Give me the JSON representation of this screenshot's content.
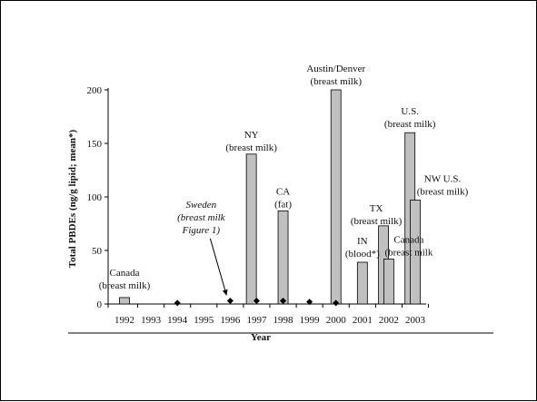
{
  "chart_data": {
    "type": "bar",
    "xlabel": "Year",
    "ylabel": "Total PBDEs (ng/g lipid; mean*)",
    "ylim": [
      0,
      200
    ],
    "yticks": [
      0,
      50,
      100,
      150,
      200
    ],
    "categories": [
      "1992",
      "1993",
      "1994",
      "1995",
      "1996",
      "1997",
      "1998",
      "1999",
      "2000",
      "2001",
      "2002",
      "2003"
    ],
    "bars": [
      {
        "year": 1992.0,
        "value": 6
      },
      {
        "year": 1996.8,
        "value": 140
      },
      {
        "year": 1998.0,
        "value": 87
      },
      {
        "year": 2000.0,
        "value": 200
      },
      {
        "year": 2001.0,
        "value": 39
      },
      {
        "year": 2001.8,
        "value": 73
      },
      {
        "year": 2002.0,
        "value": 42
      },
      {
        "year": 2002.8,
        "value": 160
      },
      {
        "year": 2003.0,
        "value": 97
      }
    ],
    "points": [
      {
        "year": 1994.0,
        "value": 1
      },
      {
        "year": 1996.0,
        "value": 3
      },
      {
        "year": 1997.0,
        "value": 3
      },
      {
        "year": 1998.0,
        "value": 3
      },
      {
        "year": 1999.0,
        "value": 2
      },
      {
        "year": 2000.0,
        "value": 1
      }
    ],
    "annotations": [
      {
        "id": "canada-1992",
        "lines": [
          "Canada",
          "(breast milk)"
        ],
        "year": 1992.0,
        "value": 6,
        "dy": [
          -24,
          -10
        ],
        "dx": 0,
        "style": "normal",
        "anchor": "middle"
      },
      {
        "id": "sweden",
        "lines": [
          "Sweden",
          "(breast milk",
          "Figure 1)"
        ],
        "year": 1994.9,
        "value": 90,
        "dy": [
          0,
          14,
          28
        ],
        "dx": 0,
        "style": "italic",
        "anchor": "middle"
      },
      {
        "id": "ny",
        "lines": [
          "NY",
          "(breast milk)"
        ],
        "year": 1996.8,
        "value": 140,
        "dy": [
          -18,
          -4
        ],
        "dx": 0,
        "style": "normal",
        "anchor": "middle"
      },
      {
        "id": "ca",
        "lines": [
          "CA",
          "(fat)"
        ],
        "year": 1998.0,
        "value": 87,
        "dy": [
          -18,
          -4
        ],
        "dx": 0,
        "style": "normal",
        "anchor": "middle"
      },
      {
        "id": "austin-denver",
        "lines": [
          "Austin/Denver",
          "(breast milk)"
        ],
        "year": 2000.0,
        "value": 200,
        "dy": [
          -20,
          -6
        ],
        "dx": 0,
        "style": "normal",
        "anchor": "middle"
      },
      {
        "id": "in",
        "lines": [
          "IN",
          "(blood*)"
        ],
        "year": 2001.0,
        "value": 39,
        "dy": [
          -20,
          -6
        ],
        "dx": 0,
        "style": "normal",
        "anchor": "middle"
      },
      {
        "id": "tx",
        "lines": [
          "TX",
          "(breast milk)"
        ],
        "year": 2001.8,
        "value": 73,
        "dy": [
          -16,
          -2
        ],
        "dx": -8,
        "style": "normal",
        "anchor": "middle"
      },
      {
        "id": "canada-2002",
        "lines": [
          "Canada",
          "(breast milk"
        ],
        "year": 2002.0,
        "value": 42,
        "dy": [
          -18,
          -4
        ],
        "dx": 22,
        "style": "normal",
        "anchor": "middle"
      },
      {
        "id": "us",
        "lines": [
          "U.S.",
          "(breast milk)"
        ],
        "year": 2002.8,
        "value": 160,
        "dy": [
          -20,
          -6
        ],
        "dx": 0,
        "style": "normal",
        "anchor": "middle"
      },
      {
        "id": "nw-us",
        "lines": [
          "NW U.S.",
          "(breast milk)"
        ],
        "year": 2003.0,
        "value": 97,
        "dy": [
          -20,
          -6
        ],
        "dx": 30,
        "style": "normal",
        "anchor": "middle"
      }
    ],
    "grid": false,
    "legend": "none"
  }
}
